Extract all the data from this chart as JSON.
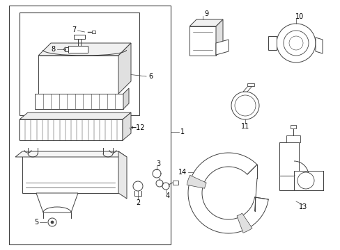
{
  "background_color": "#ffffff",
  "line_color": "#404040",
  "text_color": "#000000",
  "fig_width": 4.89,
  "fig_height": 3.6,
  "dpi": 100
}
